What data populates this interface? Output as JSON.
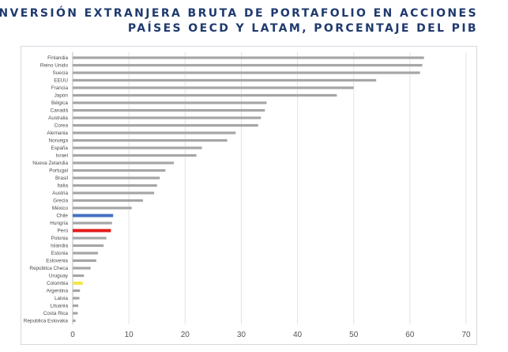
{
  "title": {
    "line1": "INVERSIÓN EXTRANJERA BRUTA DE PORTAFOLIO EN ACCIONES",
    "line2": "PAÍSES OECD Y LATAM, PORCENTAJE DEL PIB"
  },
  "chart_data": {
    "type": "bar",
    "orientation": "horizontal",
    "categories": [
      "Finlandia",
      "Reino Unido",
      "Suecia",
      "EEUU",
      "Francia",
      "Japón",
      "Bélgica",
      "Canadá",
      "Australia",
      "Corea",
      "Alemania",
      "Noruega",
      "España",
      "Israel",
      "Nueva Zelandia",
      "Portugal",
      "Brasil",
      "Italia",
      "Austria",
      "Grecia",
      "México",
      "Chile",
      "Hungría",
      "Perú",
      "Polonia",
      "Islandia",
      "Estonia",
      "Eslovenia",
      "República Checa",
      "Uruguay",
      "Colombia",
      "Argentina",
      "Latvia",
      "Lituania",
      "Costa Rica",
      "Republica Eslovaka"
    ],
    "values": [
      62.5,
      62.2,
      61.8,
      54.0,
      50.0,
      47.0,
      34.5,
      34.2,
      33.5,
      33.0,
      29.0,
      27.5,
      23.0,
      22.0,
      18.0,
      16.5,
      15.5,
      15.0,
      14.5,
      12.5,
      10.5,
      7.2,
      7.0,
      6.8,
      6.0,
      5.5,
      4.5,
      4.2,
      3.2,
      2.0,
      1.8,
      1.3,
      1.2,
      1.0,
      0.9,
      0.5
    ],
    "bar_colors": {
      "default": "#a6a6a6",
      "Chile": "#4472c4",
      "Perú": "#e31b1b",
      "Colombia": "#f3e64a"
    },
    "x_ticks": [
      0,
      10,
      20,
      30,
      40,
      50,
      60,
      70
    ],
    "xlim": [
      0,
      70
    ],
    "grid": true,
    "xlabel": "",
    "ylabel": ""
  }
}
